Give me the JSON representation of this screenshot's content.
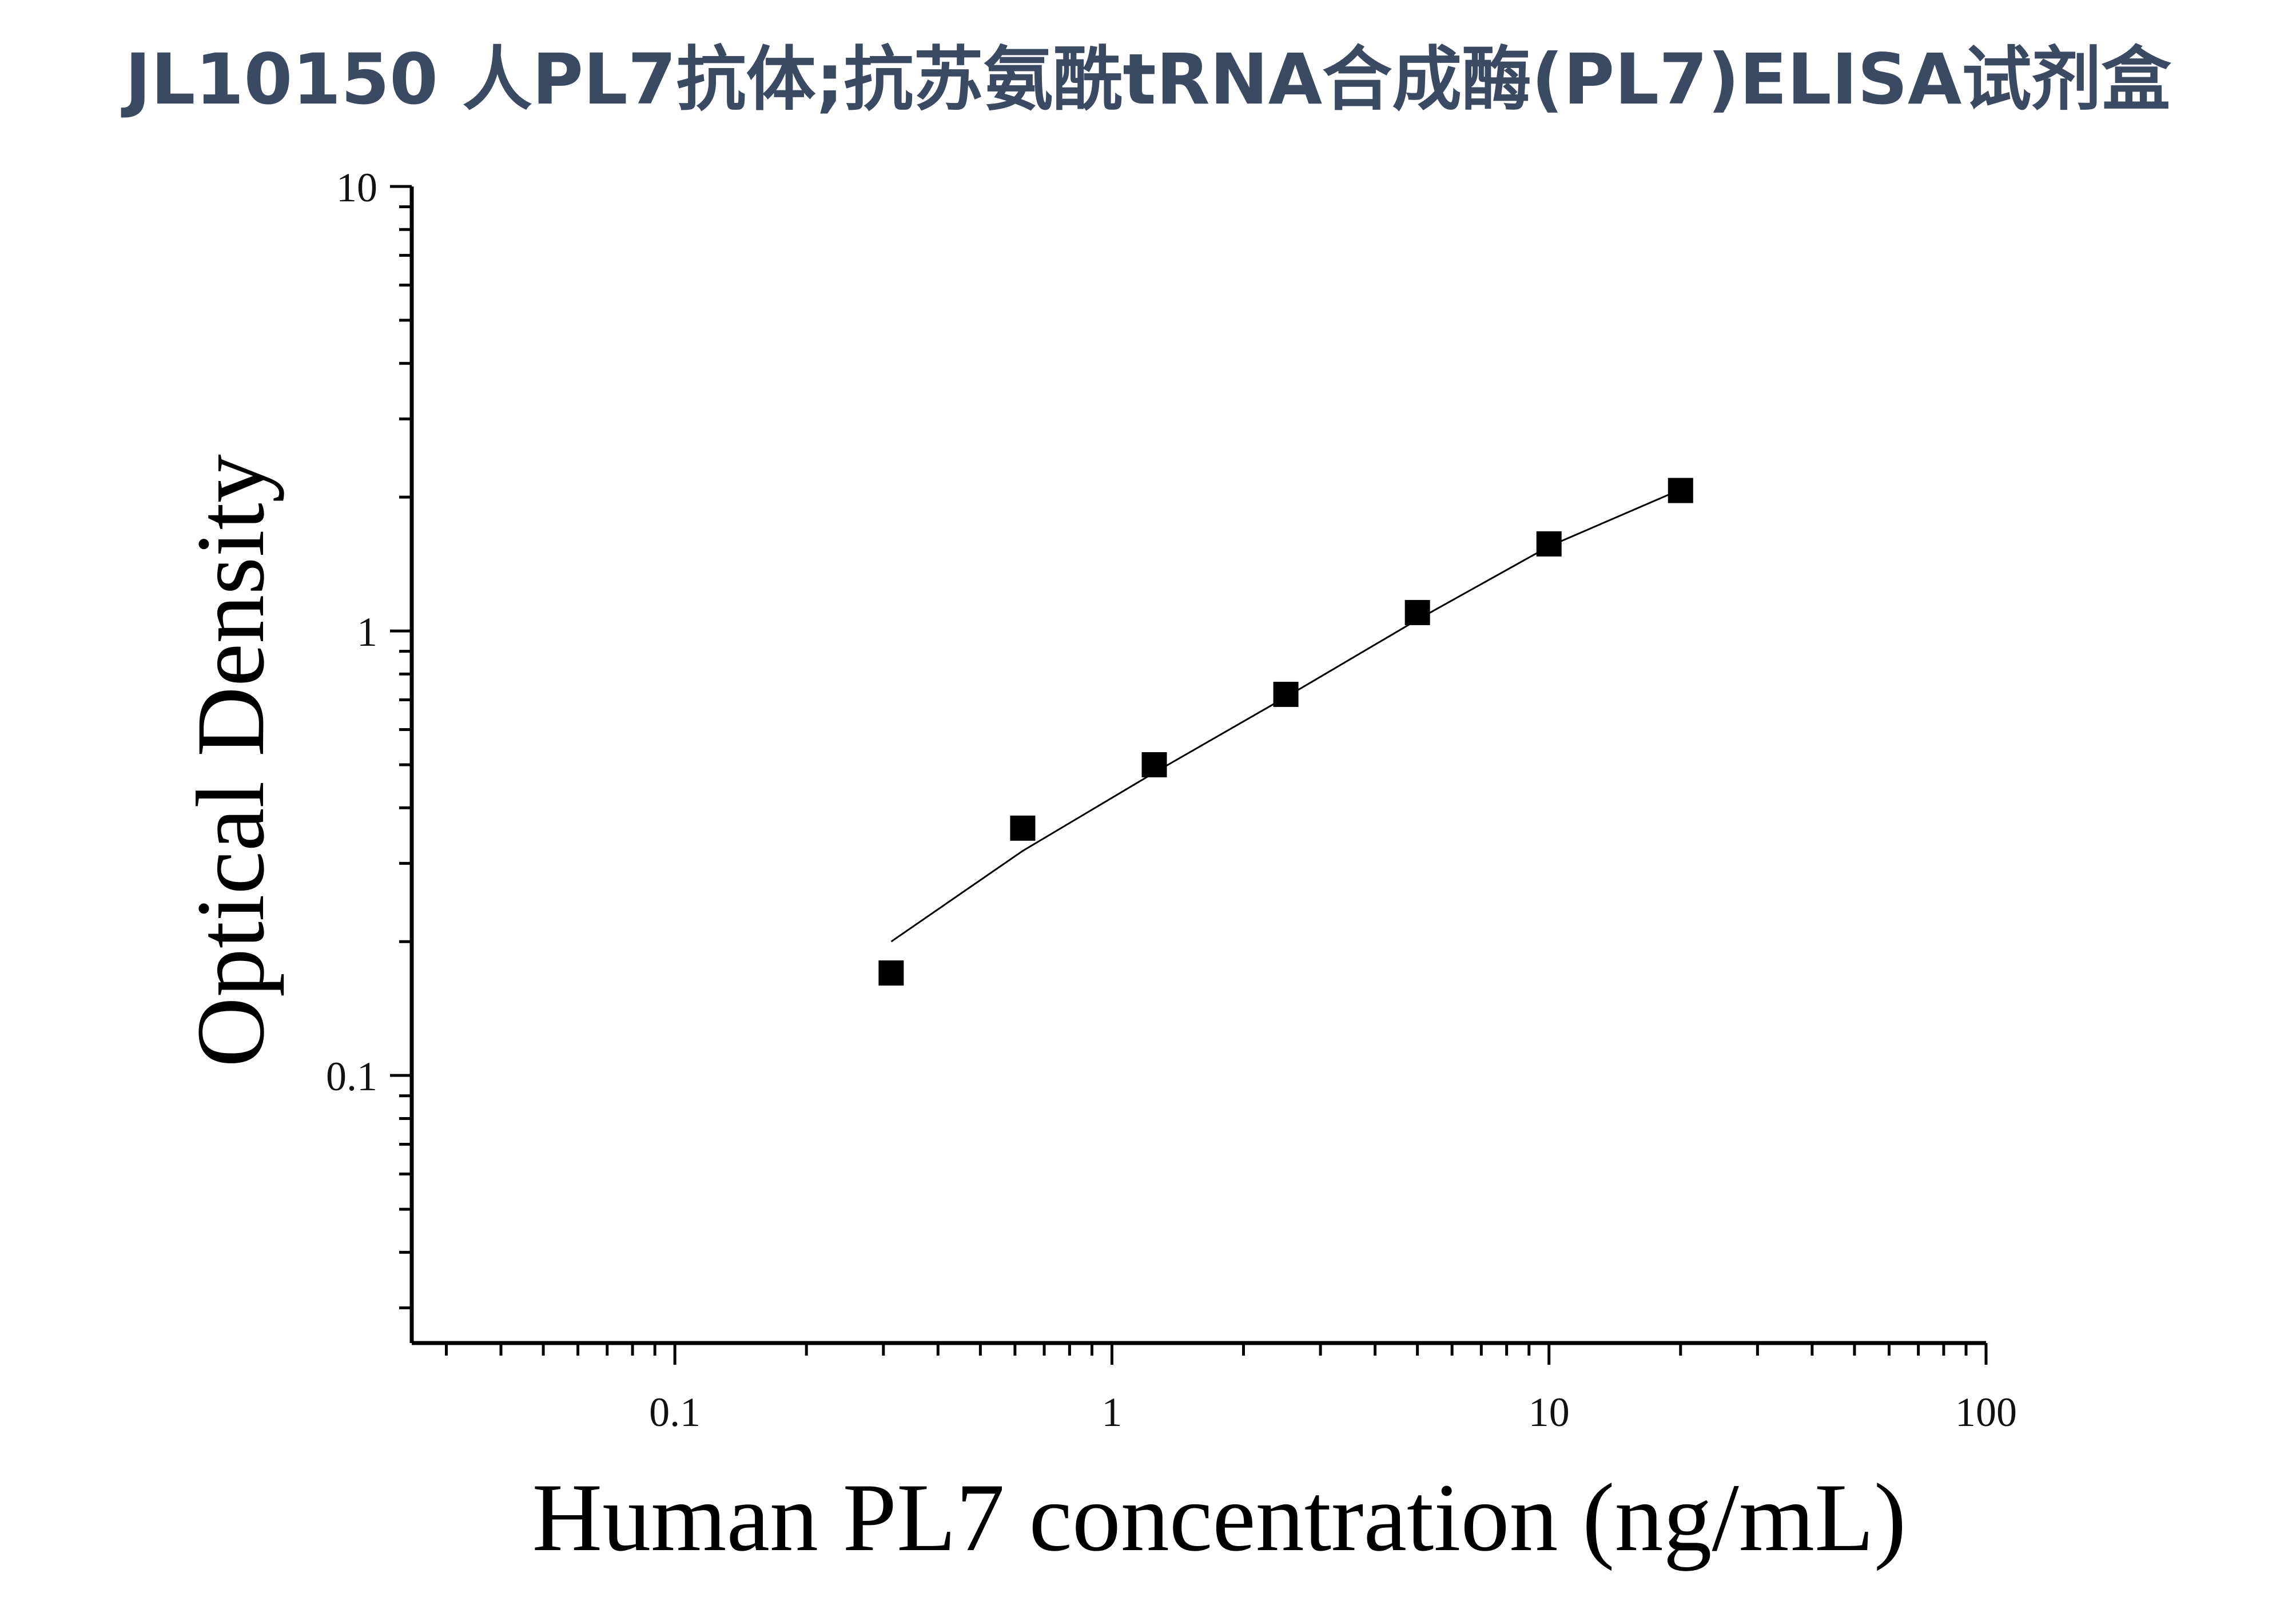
{
  "chart_data": {
    "type": "scatter",
    "title": "JL10150 人PL7抗体;抗苏氨酰tRNA合成酶(PL7)ELISA试剂盒",
    "xlabel": "Human PL7 concentration (ng/mL)",
    "ylabel": "Optical Density",
    "xscale": "log",
    "yscale": "log",
    "xlim": [
      0.025,
      100
    ],
    "ylim": [
      0.025,
      10
    ],
    "x_ticks": [
      "0.1",
      "1",
      "10",
      "100"
    ],
    "y_ticks": [
      "0.1",
      "1",
      "10"
    ],
    "x_tick_values": [
      0.1,
      1,
      10,
      100
    ],
    "y_tick_values": [
      0.1,
      1,
      10
    ],
    "grid": false,
    "legend": "none",
    "series": [
      {
        "marker": "square",
        "color": "#000000",
        "x": [
          0.3125,
          0.625,
          1.25,
          2.5,
          5,
          10,
          20
        ],
        "y": [
          0.17,
          0.36,
          0.5,
          0.72,
          1.1,
          1.57,
          2.07
        ]
      }
    ],
    "fit_curve": {
      "color": "#000000",
      "x": [
        0.3125,
        0.625,
        1.25,
        2.5,
        5,
        10,
        20
      ],
      "y": [
        0.2,
        0.32,
        0.48,
        0.71,
        1.06,
        1.55,
        2.08
      ]
    }
  }
}
